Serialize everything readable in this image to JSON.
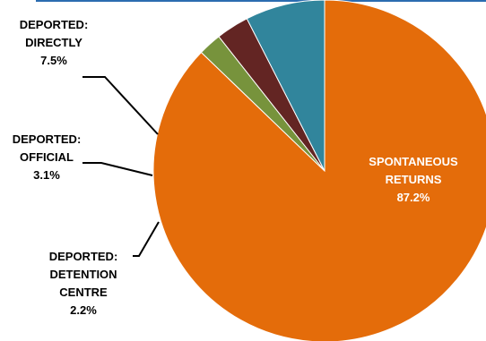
{
  "chart_data": {
    "type": "pie",
    "title": "",
    "slices": [
      {
        "label_lines": [
          "SPONTANEOUS",
          "RETURNS",
          "87.2%"
        ],
        "value": 87.2,
        "color": "#e46c0a",
        "label_color": "#ffffff"
      },
      {
        "label_lines": [
          "DEPORTED:",
          "DETENTION",
          "CENTRE",
          "2.2%"
        ],
        "value": 2.2,
        "color": "#77933c",
        "label_color": "#000000"
      },
      {
        "label_lines": [
          "DEPORTED:",
          "OFFICIAL",
          "3.1%"
        ],
        "value": 3.1,
        "color": "#632523",
        "label_color": "#000000"
      },
      {
        "label_lines": [
          "DEPORTED:",
          "DIRECTLY",
          "7.5%"
        ],
        "value": 7.5,
        "color": "#31859c",
        "label_color": "#000000"
      }
    ],
    "start_angle_deg": 90,
    "direction": "clockwise",
    "legend": "none"
  }
}
